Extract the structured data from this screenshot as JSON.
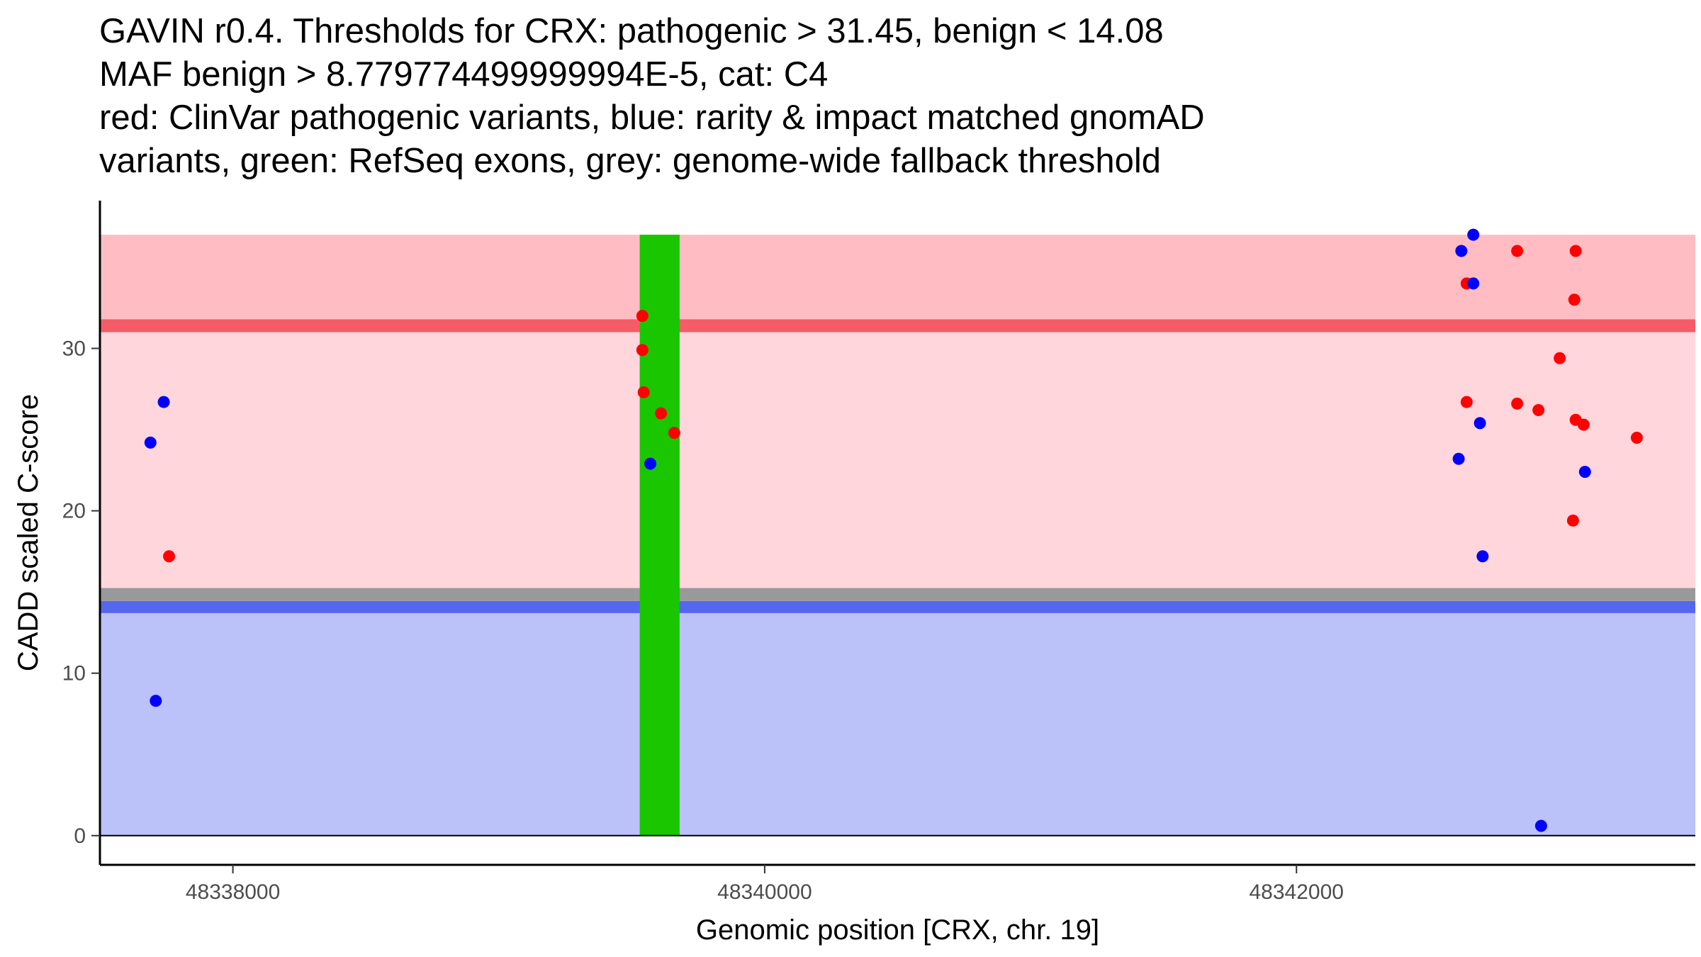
{
  "chart_data": {
    "type": "scatter",
    "title_lines": [
      "GAVIN r0.4. Thresholds for CRX: pathogenic > 31.45, benign < 14.08",
      "MAF benign > 8.779774499999994E-5, cat: C4",
      "red: ClinVar pathogenic variants, blue: rarity & impact matched gnomAD",
      "variants, green: RefSeq exons, grey: genome-wide fallback threshold"
    ],
    "xlabel": "Genomic position [CRX, chr. 19]",
    "ylabel": "CADD scaled C-score",
    "xlim": [
      48337500,
      48343500
    ],
    "ylim": [
      -1.8,
      39.1
    ],
    "x_ticks": [
      48338000,
      48340000,
      48342000
    ],
    "y_ticks": [
      0,
      10,
      20,
      30
    ],
    "grid": false,
    "colors": {
      "pathogenic_region": "#ffd6dc",
      "pathogenic_upper_region": "#ffbdc3",
      "pathogenic_threshold": "#f65b68",
      "benign_region": "#bbc1f9",
      "benign_threshold": "#5566ef",
      "fallback_threshold": "#999999",
      "exon": "#1ac600",
      "clinvar_pathogenic": "#ff0000",
      "gnomad_matched": "#0000ff",
      "axis": "#000000"
    },
    "regions": {
      "benign_band": [
        0,
        13.7
      ],
      "benign_threshold_band": [
        13.7,
        14.45
      ],
      "fallback_threshold_band": [
        14.45,
        15.25
      ],
      "pathogenic_band": [
        15.25,
        31.0
      ],
      "pathogenic_threshold_band": [
        31.0,
        31.8
      ],
      "pathogenic_upper_band": [
        31.8,
        37.0
      ]
    },
    "exons": [
      {
        "start": 48339530,
        "end": 48339680
      }
    ],
    "series": [
      {
        "name": "ClinVar pathogenic variants",
        "color": "#ff0000",
        "points": [
          {
            "x": 48337760,
            "y": 17.2
          },
          {
            "x": 48339540,
            "y": 32.0
          },
          {
            "x": 48339540,
            "y": 29.9
          },
          {
            "x": 48339545,
            "y": 27.3
          },
          {
            "x": 48339610,
            "y": 26.0
          },
          {
            "x": 48339660,
            "y": 24.8
          },
          {
            "x": 48342640,
            "y": 34.0
          },
          {
            "x": 48342640,
            "y": 26.7
          },
          {
            "x": 48342830,
            "y": 36.0
          },
          {
            "x": 48342830,
            "y": 26.6
          },
          {
            "x": 48342910,
            "y": 26.2
          },
          {
            "x": 48342990,
            "y": 29.4
          },
          {
            "x": 48343050,
            "y": 36.0
          },
          {
            "x": 48343045,
            "y": 33.0
          },
          {
            "x": 48343050,
            "y": 25.6
          },
          {
            "x": 48343080,
            "y": 25.3
          },
          {
            "x": 48343040,
            "y": 19.4
          },
          {
            "x": 48343280,
            "y": 24.5
          }
        ]
      },
      {
        "name": "rarity & impact matched gnomAD variants",
        "color": "#0000ff",
        "points": [
          {
            "x": 48337690,
            "y": 24.2
          },
          {
            "x": 48337740,
            "y": 26.7
          },
          {
            "x": 48337710,
            "y": 8.3
          },
          {
            "x": 48339570,
            "y": 22.9
          },
          {
            "x": 48342620,
            "y": 36.0
          },
          {
            "x": 48342665,
            "y": 37.0
          },
          {
            "x": 48342665,
            "y": 34.0
          },
          {
            "x": 48342690,
            "y": 25.4
          },
          {
            "x": 48342610,
            "y": 23.2
          },
          {
            "x": 48342700,
            "y": 17.2
          },
          {
            "x": 48342920,
            "y": 0.6
          },
          {
            "x": 48343085,
            "y": 22.4
          }
        ]
      }
    ]
  }
}
